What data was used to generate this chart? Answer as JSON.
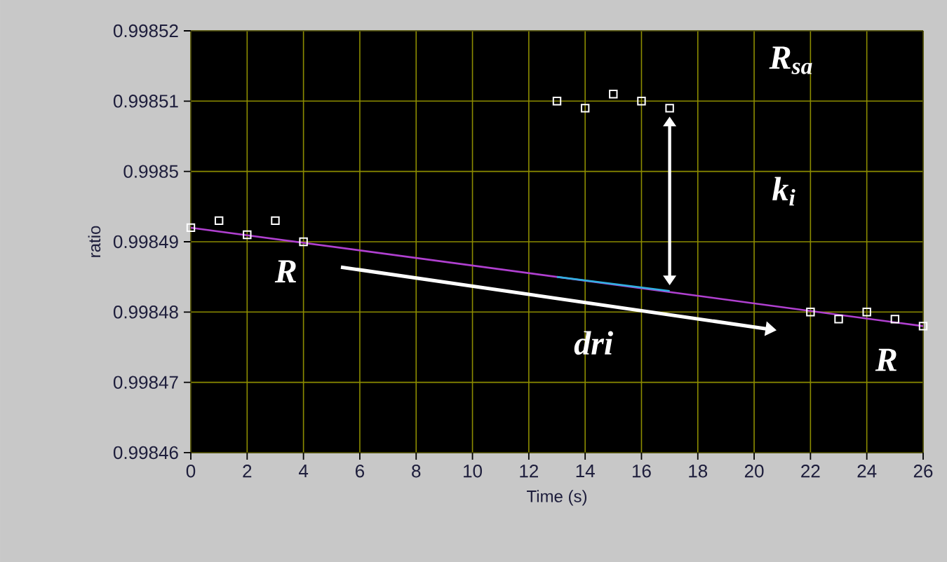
{
  "chart_data": {
    "type": "scatter",
    "xlabel": "Time (s)",
    "ylabel": "ratio",
    "xlim": [
      0,
      26
    ],
    "xticks": [
      0,
      2,
      4,
      6,
      8,
      10,
      12,
      14,
      16,
      18,
      20,
      22,
      24,
      26
    ],
    "ylim": [
      0.99846,
      0.99852
    ],
    "yticks": [
      0.99846,
      0.99847,
      0.99848,
      0.99849,
      0.9985,
      0.99851,
      0.99852
    ],
    "grid": true,
    "series": [
      {
        "marker": "square",
        "color": "#ffffff",
        "x": [
          0,
          1,
          2,
          3,
          4,
          13,
          14,
          15,
          16,
          17,
          22,
          23,
          24,
          25,
          26
        ],
        "values": [
          0.998492,
          0.998493,
          0.998491,
          0.998493,
          0.99849,
          0.99851,
          0.998509,
          0.998511,
          0.99851,
          0.998509,
          0.99848,
          0.998479,
          0.99848,
          0.998479,
          0.998478
        ]
      },
      {
        "type": "line",
        "marker": "none",
        "color": "#b040d0",
        "x": [
          0,
          26
        ],
        "values": [
          0.998492,
          0.998478
        ]
      },
      {
        "type": "line",
        "marker": "none",
        "color": "#30b0e0",
        "x": [
          13,
          17
        ],
        "values": [
          0.998485,
          0.998483
        ]
      }
    ],
    "annotations": [
      "R",
      "R$_{sa}$",
      "k$_{i}$",
      "dri",
      "R"
    ]
  }
}
